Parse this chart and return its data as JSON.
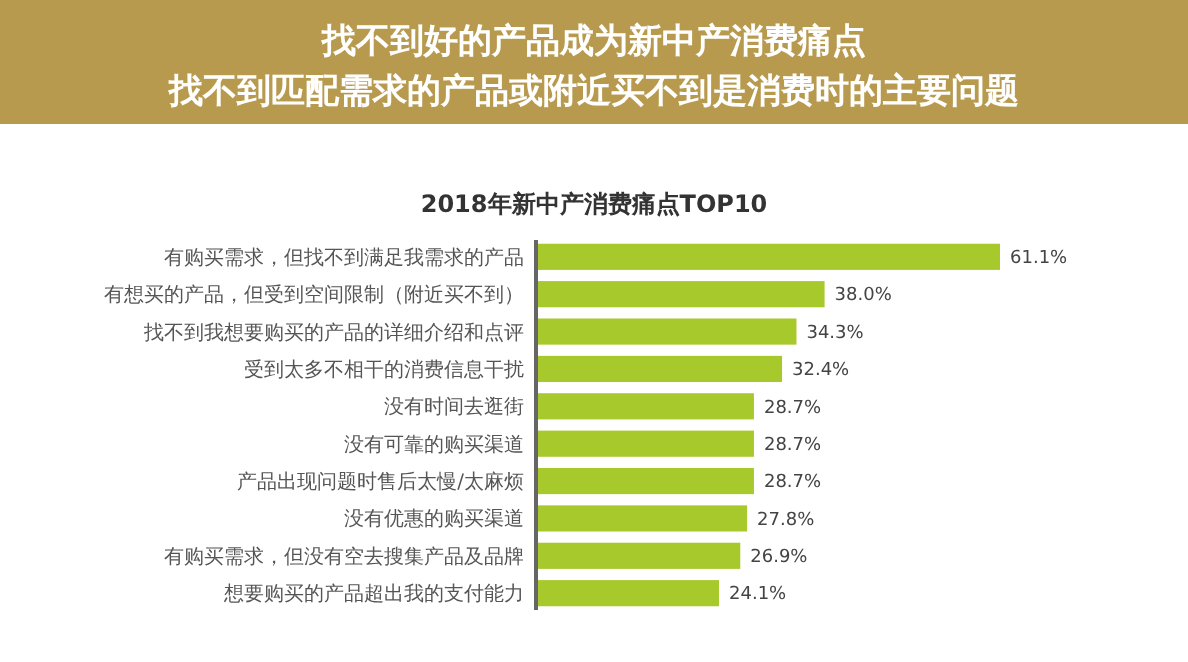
{
  "chart_data": {
    "type": "bar",
    "orientation": "horizontal",
    "title": "找不到好的产品成为新中产消费痛点",
    "subtitle": "找不到匹配需求的产品或附近买不到是消费时的主要问题",
    "annotations": [
      "2018年新中产消费痛点TOP10"
    ],
    "categories": [
      "有购买需求，但找不到满足我需求的产品",
      "有想买的产品，但受到空间限制（附近买不到）",
      "找不到我想要购买的产品的详细介绍和点评",
      "受到太多不相干的消费信息干扰",
      "没有时间去逛街",
      "没有可靠的购买渠道",
      "产品出现问题时售后太慢/太麻烦",
      "没有优惠的购买渠道",
      "有购买需求，但没有空去搜集产品及品牌",
      "想要购买的产品超出我的支付能力"
    ],
    "values": [
      61.1,
      38.0,
      34.3,
      32.4,
      28.7,
      28.7,
      28.7,
      27.8,
      26.9,
      24.1
    ],
    "value_labels": [
      "61.1%",
      "38.0%",
      "34.3%",
      "32.4%",
      "28.7%",
      "28.7%",
      "28.7%",
      "27.8%",
      "26.9%",
      "24.1%"
    ],
    "color": "#a8c92c"
  }
}
